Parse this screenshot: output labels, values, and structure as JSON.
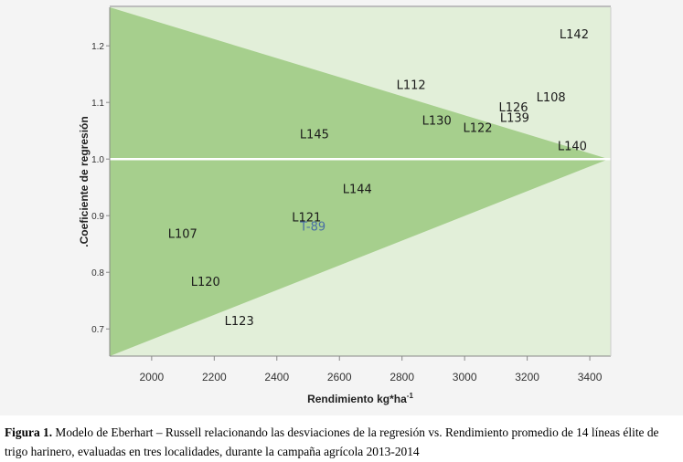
{
  "chart_data": {
    "type": "scatter",
    "title": "",
    "xlabel": "Rendimiento kg*ha",
    "xlabel_sup": "-1",
    "ylabel": ".Coeficiente de regresión",
    "xlim": [
      1866,
      3467
    ],
    "ylim": [
      0.652,
      1.268
    ],
    "xticks": [
      2000,
      2200,
      2400,
      2600,
      2800,
      3000,
      3200,
      3400
    ],
    "yticks": [
      0.7,
      0.8,
      0.9,
      1.0,
      1.1,
      1.2
    ],
    "ytick_labels": [
      "0.7",
      "0.8",
      "0.9",
      "1.0",
      "1.1",
      "1.2"
    ],
    "reference_line_y": 1.0,
    "upper_triangle": [
      [
        1866,
        1.268
      ],
      [
        1866,
        1.0
      ],
      [
        3460,
        1.0
      ]
    ],
    "lower_triangle": [
      [
        1866,
        1.0
      ],
      [
        1866,
        0.652
      ],
      [
        3460,
        1.0
      ]
    ],
    "colors": {
      "background": "#e2efd9",
      "triangle": "#a6cf8d",
      "label": "#1a1a1a",
      "highlight": "#4a6fa5",
      "refline": "#ffffff"
    },
    "points": [
      {
        "label": "L142",
        "x": 3350,
        "y": 1.221
      },
      {
        "label": "L112",
        "x": 2829,
        "y": 1.132
      },
      {
        "label": "L108",
        "x": 3276,
        "y": 1.11
      },
      {
        "label": "L126",
        "x": 3156,
        "y": 1.092
      },
      {
        "label": "L139",
        "x": 3160,
        "y": 1.074
      },
      {
        "label": "L130",
        "x": 2911,
        "y": 1.069
      },
      {
        "label": "L122",
        "x": 3042,
        "y": 1.056
      },
      {
        "label": "L145",
        "x": 2520,
        "y": 1.045
      },
      {
        "label": "L140",
        "x": 3344,
        "y": 1.024
      },
      {
        "label": "L144",
        "x": 2657,
        "y": 0.948
      },
      {
        "label": "L121",
        "x": 2495,
        "y": 0.898
      },
      {
        "label": "T-89",
        "x": 2515,
        "y": 0.882,
        "highlight": true
      },
      {
        "label": "L107",
        "x": 2099,
        "y": 0.869
      },
      {
        "label": "L120",
        "x": 2172,
        "y": 0.784
      },
      {
        "label": "L123",
        "x": 2280,
        "y": 0.715
      }
    ]
  },
  "caption": {
    "label": "Figura 1.",
    "text": " Modelo de Eberhart – Russell relacionando las desviaciones de la regresión vs. Rendimiento promedio  de 14 líneas élite de trigo harinero, evaluadas en tres localidades, durante la campaña agrícola 2013-2014"
  }
}
